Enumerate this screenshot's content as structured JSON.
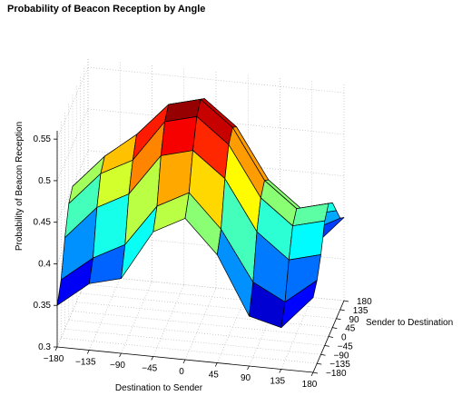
{
  "chart_data": {
    "type": "surface",
    "title": "Probability of Beacon Reception by Angle",
    "xlabel": "Destination to Sender",
    "ylabel": "Sender to Destination",
    "zlabel": "Probability of Beacon Reception",
    "x": [
      -180,
      -135,
      -90,
      -45,
      0,
      45,
      90,
      135,
      180
    ],
    "y": [
      -180,
      -135,
      -90,
      -45,
      0,
      45,
      90,
      135,
      180
    ],
    "x_ticks": [
      "−180",
      "−135",
      "−90",
      "−45",
      "0",
      "45",
      "90",
      "135",
      "180"
    ],
    "y_ticks": [
      "−180",
      "−135",
      "−90",
      "−45",
      "0",
      "45",
      "90",
      "135",
      "180"
    ],
    "z_ticks": [
      "0.3",
      "0.35",
      "0.4",
      "0.45",
      "0.5",
      "0.55"
    ],
    "zlim": [
      0.3,
      0.56
    ],
    "grid": true,
    "colormap": "jet",
    "z": [
      [
        0.35,
        0.38,
        0.39,
        0.45,
        0.47,
        0.43,
        0.36,
        0.35,
        0.39
      ],
      [
        0.37,
        0.4,
        0.42,
        0.47,
        0.49,
        0.45,
        0.39,
        0.37,
        0.4
      ],
      [
        0.41,
        0.45,
        0.47,
        0.52,
        0.53,
        0.5,
        0.44,
        0.41,
        0.42
      ],
      [
        0.44,
        0.48,
        0.5,
        0.55,
        0.56,
        0.53,
        0.47,
        0.44,
        0.45
      ],
      [
        0.45,
        0.49,
        0.52,
        0.56,
        0.57,
        0.54,
        0.48,
        0.45,
        0.46
      ],
      [
        0.44,
        0.48,
        0.5,
        0.55,
        0.56,
        0.53,
        0.47,
        0.44,
        0.45
      ],
      [
        0.42,
        0.46,
        0.48,
        0.53,
        0.54,
        0.51,
        0.45,
        0.42,
        0.43
      ],
      [
        0.4,
        0.43,
        0.44,
        0.49,
        0.5,
        0.47,
        0.41,
        0.39,
        0.41
      ],
      [
        0.38,
        0.4,
        0.41,
        0.46,
        0.48,
        0.44,
        0.37,
        0.36,
        0.4
      ]
    ]
  }
}
